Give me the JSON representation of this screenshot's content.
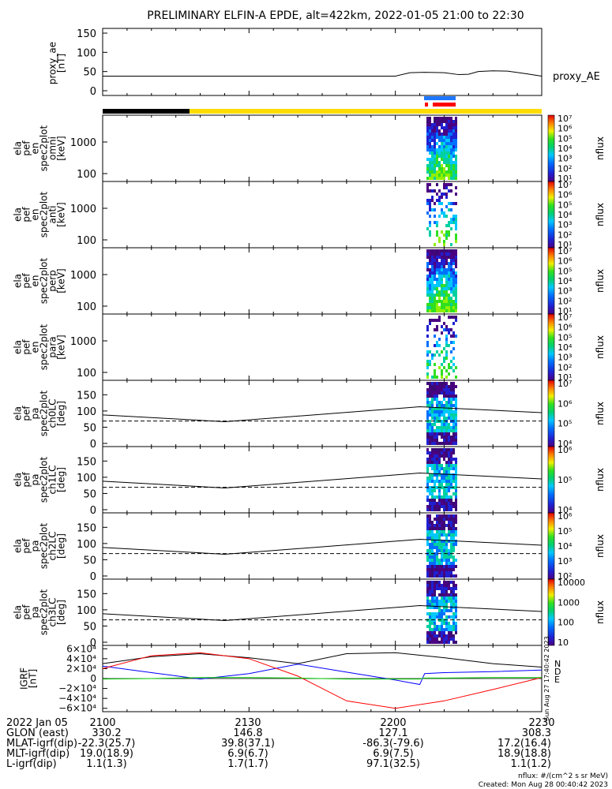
{
  "title": "PRELIMINARY ELFIN-A EPDE, alt=422km, 2022-01-05 21:00 to 22:30",
  "proxy_ae": {
    "ylabel": [
      "proxy_ae",
      "[nT]"
    ],
    "legend": "proxy_AE",
    "yticks": [
      "150",
      "100",
      "50",
      "0"
    ]
  },
  "spec_panels": [
    {
      "ylabel": [
        "ela",
        "pef",
        "en",
        "spec2plot",
        "omni",
        "[keV]"
      ],
      "yticks": [
        "1000",
        "100"
      ],
      "cbar_label": "nflux",
      "cbar_ticks": [
        "10⁷",
        "10⁶",
        "10⁵",
        "10⁴",
        "10³",
        "10²",
        "10¹"
      ]
    },
    {
      "ylabel": [
        "ela",
        "pef",
        "en",
        "spec2plot",
        "anti",
        "[keV]"
      ],
      "yticks": [
        "1000",
        "100"
      ],
      "cbar_label": "nflux",
      "cbar_ticks": [
        "10⁷",
        "10⁶",
        "10⁵",
        "10⁴",
        "10³",
        "10²",
        "10¹"
      ]
    },
    {
      "ylabel": [
        "ela",
        "pef",
        "en",
        "spec2plot",
        "perp",
        "[keV]"
      ],
      "yticks": [
        "1000",
        "100"
      ],
      "cbar_label": "nflux",
      "cbar_ticks": [
        "10⁷",
        "10⁶",
        "10⁵",
        "10⁴",
        "10³",
        "10²",
        "10¹"
      ]
    },
    {
      "ylabel": [
        "ela",
        "pef",
        "en",
        "spec2plot",
        "para",
        "[keV]"
      ],
      "yticks": [
        "1000",
        "100"
      ],
      "cbar_label": "nflux",
      "cbar_ticks": [
        "10⁷",
        "10⁶",
        "10⁵",
        "10⁴",
        "10³",
        "10²",
        "10¹"
      ]
    }
  ],
  "pa_panels": [
    {
      "ylabel": [
        "ela",
        "pef",
        "pa",
        "spec2plot",
        "ch0LC",
        "[deg]"
      ],
      "yticks": [
        "150",
        "100",
        "50",
        "0"
      ],
      "cbar_label": "nflux",
      "cbar_ticks": [
        "10⁷",
        "10⁶",
        "10⁵",
        "10⁴"
      ]
    },
    {
      "ylabel": [
        "ela",
        "pef",
        "pa",
        "spec2plot",
        "ch1LC",
        "[deg]"
      ],
      "yticks": [
        "150",
        "100",
        "50",
        "0"
      ],
      "cbar_label": "nflux",
      "cbar_ticks": [
        "10⁶",
        "10⁵",
        "10⁴"
      ]
    },
    {
      "ylabel": [
        "ela",
        "pef",
        "pa",
        "spec2plot",
        "ch2LC",
        "[deg]"
      ],
      "yticks": [
        "150",
        "100",
        "50",
        "0"
      ],
      "cbar_label": "nflux",
      "cbar_ticks": [
        "10⁶",
        "10⁵",
        "10⁴",
        "10³",
        "10²"
      ]
    },
    {
      "ylabel": [
        "ela",
        "pef",
        "pa",
        "spec2plot",
        "ch3LC",
        "[deg]"
      ],
      "yticks": [
        "150",
        "100",
        "50",
        "0"
      ],
      "cbar_label": "nflux",
      "cbar_ticks": [
        "10000",
        "1000",
        "100",
        "10"
      ]
    }
  ],
  "igrf": {
    "ylabel": [
      "IGRF",
      "[nT]"
    ],
    "yticks": [
      "6×10⁴",
      "4×10⁴",
      "2×10⁴",
      "0",
      "−2×10⁴",
      "−4×10⁴",
      "−6×10⁴"
    ],
    "legend": [
      "N",
      "D",
      "E"
    ],
    "legend_colors": [
      "#0000ff",
      "#ff0000",
      "#00cc00"
    ],
    "side_note": "Sun Aug 27 17:40:42 2023"
  },
  "time_axis": {
    "ticks": [
      "2100",
      "2130",
      "2200",
      "2230"
    ],
    "rows": [
      {
        "label": "2022 Jan 05",
        "values": [
          "",
          "",
          "",
          ""
        ]
      },
      {
        "label": "GLON (east)",
        "values": [
          "330.2",
          "146.8",
          "127.1",
          "308.3"
        ]
      },
      {
        "label": "MLAT-igrf(dip)",
        "values": [
          "-22.3(25.7)",
          "39.8(37.1)",
          "-86.3(-79.6)",
          "17.2(16.4)"
        ]
      },
      {
        "label": "MLT-igrf(dip)",
        "values": [
          "19.0(18.9)",
          "6.9(6.7)",
          "6.9(7.5)",
          "18.9(18.8)"
        ]
      },
      {
        "label": "L-igrf(dip)",
        "values": [
          "1.1(1.3)",
          "1.7(1.7)",
          "97.1(32.5)",
          "1.1(1.2)"
        ]
      }
    ]
  },
  "footer": {
    "units": "nflux: #/(cm^2 s sr MeV)",
    "created": "Created: Mon Aug 28 00:40:42 2023"
  },
  "chart_data": {
    "type": "line",
    "time_range": [
      "21:00",
      "22:30"
    ],
    "series": [
      {
        "name": "proxy_AE",
        "x": [
          "21:00",
          "21:20",
          "21:40",
          "22:00",
          "22:03",
          "22:06",
          "22:10",
          "22:13",
          "22:15",
          "22:17",
          "22:20",
          "22:23",
          "22:27",
          "22:30"
        ],
        "values": [
          38,
          38,
          38,
          38,
          47,
          48,
          47,
          42,
          43,
          50,
          52,
          51,
          44,
          38
        ],
        "ylim": [
          0,
          150
        ]
      },
      {
        "name": "N",
        "x": [
          "21:00",
          "21:10",
          "21:20",
          "21:30",
          "21:40",
          "21:50",
          "22:00",
          "22:05",
          "22:06",
          "22:10",
          "22:20",
          "22:30"
        ],
        "values": [
          25000,
          12000,
          -1000,
          10000,
          29000,
          13000,
          -3000,
          -12000,
          10000,
          12000,
          14000,
          17000
        ]
      },
      {
        "name": "D",
        "x": [
          "21:00",
          "21:10",
          "21:20",
          "21:30",
          "21:40",
          "21:50",
          "22:00",
          "22:10",
          "22:20",
          "22:30"
        ],
        "values": [
          20000,
          46000,
          52000,
          40000,
          5000,
          -45000,
          -60000,
          -45000,
          -22000,
          2000
        ]
      },
      {
        "name": "E",
        "x": [
          "21:00",
          "21:10",
          "21:20",
          "21:30",
          "21:40",
          "21:50",
          "22:00",
          "22:05",
          "22:06",
          "22:10",
          "22:20",
          "22:30"
        ],
        "values": [
          -1000,
          0,
          2000,
          2000,
          1000,
          -1000,
          -1000,
          -1000,
          1000,
          1000,
          2000,
          2000
        ]
      },
      {
        "name": "lc_solid",
        "x": [
          "21:00",
          "21:25",
          "22:05",
          "22:30"
        ],
        "values": [
          88,
          67,
          113,
          95
        ]
      },
      {
        "name": "lc_dashed",
        "x": [
          "21:00",
          "22:30"
        ],
        "values": [
          69,
          69
        ]
      }
    ]
  },
  "colors": {
    "bar_black": "#000000",
    "bar_yellow": "#ffdd00",
    "marker_blue": "#1f77ff",
    "marker_red": "#ff0000"
  }
}
